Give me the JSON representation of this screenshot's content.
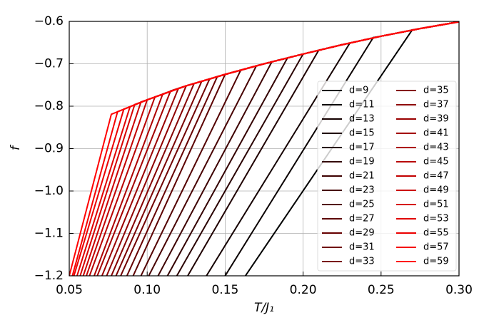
{
  "chart_data": {
    "type": "line",
    "xlabel": "T/J₁",
    "ylabel": "f",
    "xlim": [
      0.05,
      0.3
    ],
    "ylim": [
      -1.2,
      -0.6
    ],
    "grid": true,
    "legend": "right",
    "xticks": [
      0.05,
      {
        "value": 0.1,
        "label": "0.10"
      },
      0.15,
      {
        "value": 0.2,
        "label": "0.20"
      },
      0.25,
      {
        "value": 0.3,
        "label": "0.30"
      }
    ],
    "yticks": [
      {
        "value": -1.2,
        "label": "−1.2"
      },
      {
        "value": -1.1,
        "label": "−1.1"
      },
      {
        "value": -1.0,
        "label": "−1.0"
      },
      {
        "value": -0.9,
        "label": "−0.9"
      },
      {
        "value": -0.8,
        "label": "−0.8"
      },
      {
        "value": -0.7,
        "label": "−0.7"
      },
      {
        "value": -0.6,
        "label": "−0.6"
      }
    ],
    "series": [
      {
        "name": "d=9",
        "color": "#000000",
        "x": [
          0.163,
          0.27,
          0.275,
          0.3
        ],
        "values": [
          -1.2,
          -0.62,
          -0.617,
          -0.601
        ]
      },
      {
        "name": "d=11",
        "color": "#0a0000",
        "x": [
          0.15,
          0.245,
          0.25,
          0.275,
          0.3
        ],
        "values": [
          -1.2,
          -0.638,
          -0.635,
          -0.617,
          -0.601
        ]
      },
      {
        "name": "d=13",
        "color": "#140000",
        "x": [
          0.138,
          0.23,
          0.25,
          0.275,
          0.3
        ],
        "values": [
          -1.2,
          -0.651,
          -0.635,
          -0.617,
          -0.601
        ]
      },
      {
        "name": "d=15",
        "color": "#1f0000",
        "x": [
          0.126,
          0.21,
          0.225,
          0.25,
          0.275,
          0.3
        ],
        "values": [
          -1.2,
          -0.668,
          -0.655,
          -0.635,
          -0.617,
          -0.601
        ]
      },
      {
        "name": "d=17",
        "color": "#290000",
        "x": [
          0.119,
          0.2,
          0.225,
          0.25,
          0.275,
          0.3
        ],
        "values": [
          -1.2,
          -0.677,
          -0.655,
          -0.635,
          -0.617,
          -0.601
        ]
      },
      {
        "name": "d=19",
        "color": "#330000",
        "x": [
          0.113,
          0.19,
          0.2,
          0.225,
          0.25,
          0.275,
          0.3
        ],
        "values": [
          -1.2,
          -0.686,
          -0.677,
          -0.655,
          -0.635,
          -0.617,
          -0.601
        ]
      },
      {
        "name": "d=21",
        "color": "#3d0000",
        "x": [
          0.107,
          0.18,
          0.2,
          0.225,
          0.25,
          0.275,
          0.3
        ],
        "values": [
          -1.2,
          -0.695,
          -0.677,
          -0.655,
          -0.635,
          -0.617,
          -0.601
        ]
      },
      {
        "name": "d=23",
        "color": "#470000",
        "x": [
          0.101,
          0.17,
          0.175,
          0.2,
          0.225,
          0.25,
          0.275,
          0.3
        ],
        "values": [
          -1.2,
          -0.705,
          -0.7,
          -0.677,
          -0.655,
          -0.635,
          -0.617,
          -0.601
        ]
      },
      {
        "name": "d=25",
        "color": "#520000",
        "x": [
          0.096,
          0.16,
          0.175,
          0.2,
          0.225,
          0.25,
          0.275,
          0.3
        ],
        "values": [
          -1.2,
          -0.715,
          -0.7,
          -0.677,
          -0.655,
          -0.635,
          -0.617,
          -0.601
        ]
      },
      {
        "name": "d=27",
        "color": "#5c0000",
        "x": [
          0.091,
          0.15,
          0.175,
          0.2,
          0.225,
          0.25,
          0.275,
          0.3
        ],
        "values": [
          -1.2,
          -0.725,
          -0.7,
          -0.677,
          -0.655,
          -0.635,
          -0.617,
          -0.601
        ]
      },
      {
        "name": "d=29",
        "color": "#660000",
        "x": [
          0.087,
          0.145,
          0.15,
          0.175,
          0.2,
          0.225,
          0.25,
          0.275,
          0.3
        ],
        "values": [
          -1.2,
          -0.73,
          -0.725,
          -0.7,
          -0.677,
          -0.655,
          -0.635,
          -0.617,
          -0.601
        ]
      },
      {
        "name": "d=31",
        "color": "#700000",
        "x": [
          0.083,
          0.14,
          0.15,
          0.175,
          0.2,
          0.225,
          0.25,
          0.275,
          0.3
        ],
        "values": [
          -1.2,
          -0.736,
          -0.725,
          -0.7,
          -0.677,
          -0.655,
          -0.635,
          -0.617,
          -0.601
        ]
      },
      {
        "name": "d=33",
        "color": "#7a0000",
        "x": [
          0.08,
          0.135,
          0.15,
          0.175,
          0.2,
          0.225,
          0.25,
          0.275,
          0.3
        ],
        "values": [
          -1.2,
          -0.741,
          -0.725,
          -0.7,
          -0.677,
          -0.655,
          -0.635,
          -0.617,
          -0.601
        ]
      },
      {
        "name": "d=35",
        "color": "#850000",
        "x": [
          0.077,
          0.13,
          0.15,
          0.175,
          0.2,
          0.225,
          0.25,
          0.275,
          0.3
        ],
        "values": [
          -1.2,
          -0.747,
          -0.725,
          -0.7,
          -0.677,
          -0.655,
          -0.635,
          -0.617,
          -0.601
        ]
      },
      {
        "name": "d=37",
        "color": "#8f0000",
        "x": [
          0.074,
          0.125,
          0.15,
          0.175,
          0.2,
          0.225,
          0.25,
          0.275,
          0.3
        ],
        "values": [
          -1.2,
          -0.752,
          -0.725,
          -0.7,
          -0.677,
          -0.655,
          -0.635,
          -0.617,
          -0.601
        ]
      },
      {
        "name": "d=39",
        "color": "#990000",
        "x": [
          0.071,
          0.12,
          0.125,
          0.15,
          0.175,
          0.2,
          0.225,
          0.25,
          0.275,
          0.3
        ],
        "values": [
          -1.2,
          -0.758,
          -0.752,
          -0.725,
          -0.7,
          -0.677,
          -0.655,
          -0.635,
          -0.617,
          -0.601
        ]
      },
      {
        "name": "d=41",
        "color": "#a30000",
        "x": [
          0.068,
          0.115,
          0.125,
          0.15,
          0.175,
          0.2,
          0.225,
          0.25,
          0.275,
          0.3
        ],
        "values": [
          -1.2,
          -0.764,
          -0.752,
          -0.725,
          -0.7,
          -0.677,
          -0.655,
          -0.635,
          -0.617,
          -0.601
        ]
      },
      {
        "name": "d=43",
        "color": "#ad0000",
        "x": [
          0.066,
          0.11,
          0.125,
          0.15,
          0.175,
          0.2,
          0.225,
          0.25,
          0.275,
          0.3
        ],
        "values": [
          -1.2,
          -0.771,
          -0.752,
          -0.725,
          -0.7,
          -0.677,
          -0.655,
          -0.635,
          -0.617,
          -0.601
        ]
      },
      {
        "name": "d=45",
        "color": "#b80000",
        "x": [
          0.063,
          0.105,
          0.125,
          0.15,
          0.175,
          0.2,
          0.225,
          0.25,
          0.275,
          0.3
        ],
        "values": [
          -1.2,
          -0.778,
          -0.752,
          -0.725,
          -0.7,
          -0.677,
          -0.655,
          -0.635,
          -0.617,
          -0.601
        ]
      },
      {
        "name": "d=47",
        "color": "#c20000",
        "x": [
          0.061,
          0.1,
          0.125,
          0.15,
          0.175,
          0.2,
          0.225,
          0.25,
          0.275,
          0.3
        ],
        "values": [
          -1.2,
          -0.785,
          -0.752,
          -0.725,
          -0.7,
          -0.677,
          -0.655,
          -0.635,
          -0.617,
          -0.601
        ]
      },
      {
        "name": "d=49",
        "color": "#cc0000",
        "x": [
          0.059,
          0.096,
          0.1,
          0.125,
          0.15,
          0.175,
          0.2,
          0.225,
          0.25,
          0.275,
          0.3
        ],
        "values": [
          -1.2,
          -0.79,
          -0.785,
          -0.752,
          -0.725,
          -0.7,
          -0.677,
          -0.655,
          -0.635,
          -0.617,
          -0.601
        ]
      },
      {
        "name": "d=51",
        "color": "#d60000",
        "x": [
          0.057,
          0.092,
          0.1,
          0.125,
          0.15,
          0.175,
          0.2,
          0.225,
          0.25,
          0.275,
          0.3
        ],
        "values": [
          -1.2,
          -0.796,
          -0.785,
          -0.752,
          -0.725,
          -0.7,
          -0.677,
          -0.655,
          -0.635,
          -0.617,
          -0.601
        ]
      },
      {
        "name": "d=53",
        "color": "#e00000",
        "x": [
          0.055,
          0.089,
          0.1,
          0.125,
          0.15,
          0.175,
          0.2,
          0.225,
          0.25,
          0.275,
          0.3
        ],
        "values": [
          -1.2,
          -0.801,
          -0.785,
          -0.752,
          -0.725,
          -0.7,
          -0.677,
          -0.655,
          -0.635,
          -0.617,
          -0.601
        ]
      },
      {
        "name": "d=55",
        "color": "#eb0000",
        "x": [
          0.053,
          0.085,
          0.1,
          0.125,
          0.15,
          0.175,
          0.2,
          0.225,
          0.25,
          0.275,
          0.3
        ],
        "values": [
          -1.2,
          -0.807,
          -0.785,
          -0.752,
          -0.725,
          -0.7,
          -0.677,
          -0.655,
          -0.635,
          -0.617,
          -0.601
        ]
      },
      {
        "name": "d=57",
        "color": "#f50000",
        "x": [
          0.052,
          0.081,
          0.1,
          0.125,
          0.15,
          0.175,
          0.2,
          0.225,
          0.25,
          0.275,
          0.3
        ],
        "values": [
          -1.2,
          -0.813,
          -0.785,
          -0.752,
          -0.725,
          -0.7,
          -0.677,
          -0.655,
          -0.635,
          -0.617,
          -0.601
        ]
      },
      {
        "name": "d=59",
        "color": "#ff0000",
        "x": [
          0.05,
          0.077,
          0.1,
          0.125,
          0.15,
          0.175,
          0.2,
          0.225,
          0.25,
          0.275,
          0.3
        ],
        "values": [
          -1.2,
          -0.819,
          -0.785,
          -0.752,
          -0.725,
          -0.7,
          -0.677,
          -0.655,
          -0.635,
          -0.617,
          -0.601
        ]
      }
    ]
  }
}
